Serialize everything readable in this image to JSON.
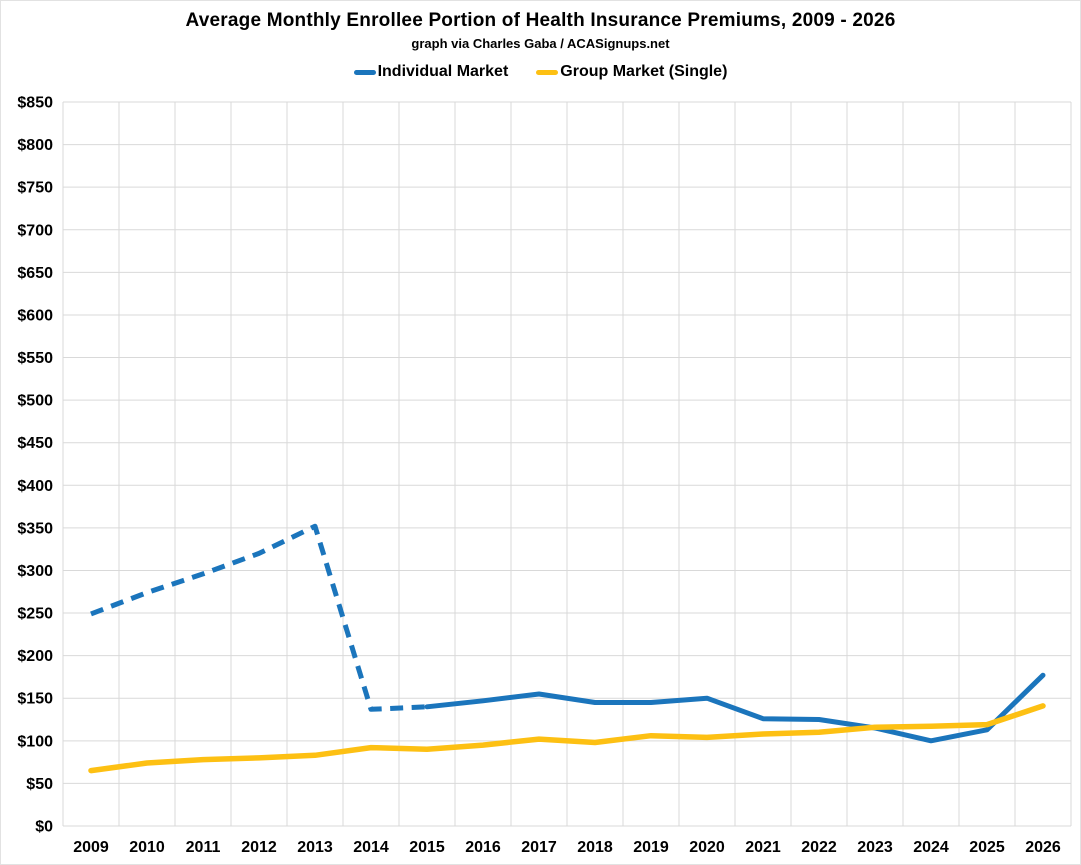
{
  "header": {
    "title": "Average Monthly Enrollee Portion of Health Insurance Premiums, 2009 - 2026",
    "subtitle": "graph via Charles Gaba / ACASignups.net"
  },
  "legend": [
    {
      "label": "Individual Market",
      "color": "#1b75bc"
    },
    {
      "label": "Group Market (Single)",
      "color": "#fdc013"
    }
  ],
  "chart_data": {
    "type": "line",
    "title": "Average Monthly Enrollee Portion of Health Insurance Premiums, 2009 - 2026",
    "subtitle": "graph via Charles Gaba / ACASignups.net",
    "x": [
      2009,
      2010,
      2011,
      2012,
      2013,
      2014,
      2015,
      2016,
      2017,
      2018,
      2019,
      2020,
      2021,
      2022,
      2023,
      2024,
      2025,
      2026
    ],
    "series": [
      {
        "name": "Individual Market",
        "color": "#1b75bc",
        "values": [
          249,
          274,
          296,
          320,
          352,
          137,
          140,
          147,
          155,
          145,
          145,
          150,
          126,
          125,
          115,
          100,
          113,
          177
        ],
        "dashed_through_index": 6,
        "line_style_note": "dashed from 2009 through 2015, solid from 2015 to 2026"
      },
      {
        "name": "Group Market (Single)",
        "color": "#fdc013",
        "values": [
          65,
          74,
          78,
          80,
          83,
          92,
          90,
          95,
          102,
          98,
          106,
          104,
          108,
          110,
          116,
          117,
          119,
          141
        ],
        "dashed_through_index": 0,
        "line_style_note": "solid"
      }
    ],
    "ylim": [
      0,
      850
    ],
    "y_tick_step": 50,
    "y_tick_prefix": "$",
    "xlabel": "",
    "ylabel": "",
    "grid": true,
    "gridline_color": "#d9d9d9",
    "legend_position": "top-center"
  },
  "axes": {
    "y_tick_labels": [
      "$0",
      "$50",
      "$100",
      "$150",
      "$200",
      "$250",
      "$300",
      "$350",
      "$400",
      "$450",
      "$500",
      "$550",
      "$600",
      "$650",
      "$700",
      "$750",
      "$800",
      "$850"
    ],
    "x_tick_labels": [
      "2009",
      "2010",
      "2011",
      "2012",
      "2013",
      "2014",
      "2015",
      "2016",
      "2017",
      "2018",
      "2019",
      "2020",
      "2021",
      "2022",
      "2023",
      "2024",
      "2025",
      "2026"
    ]
  }
}
